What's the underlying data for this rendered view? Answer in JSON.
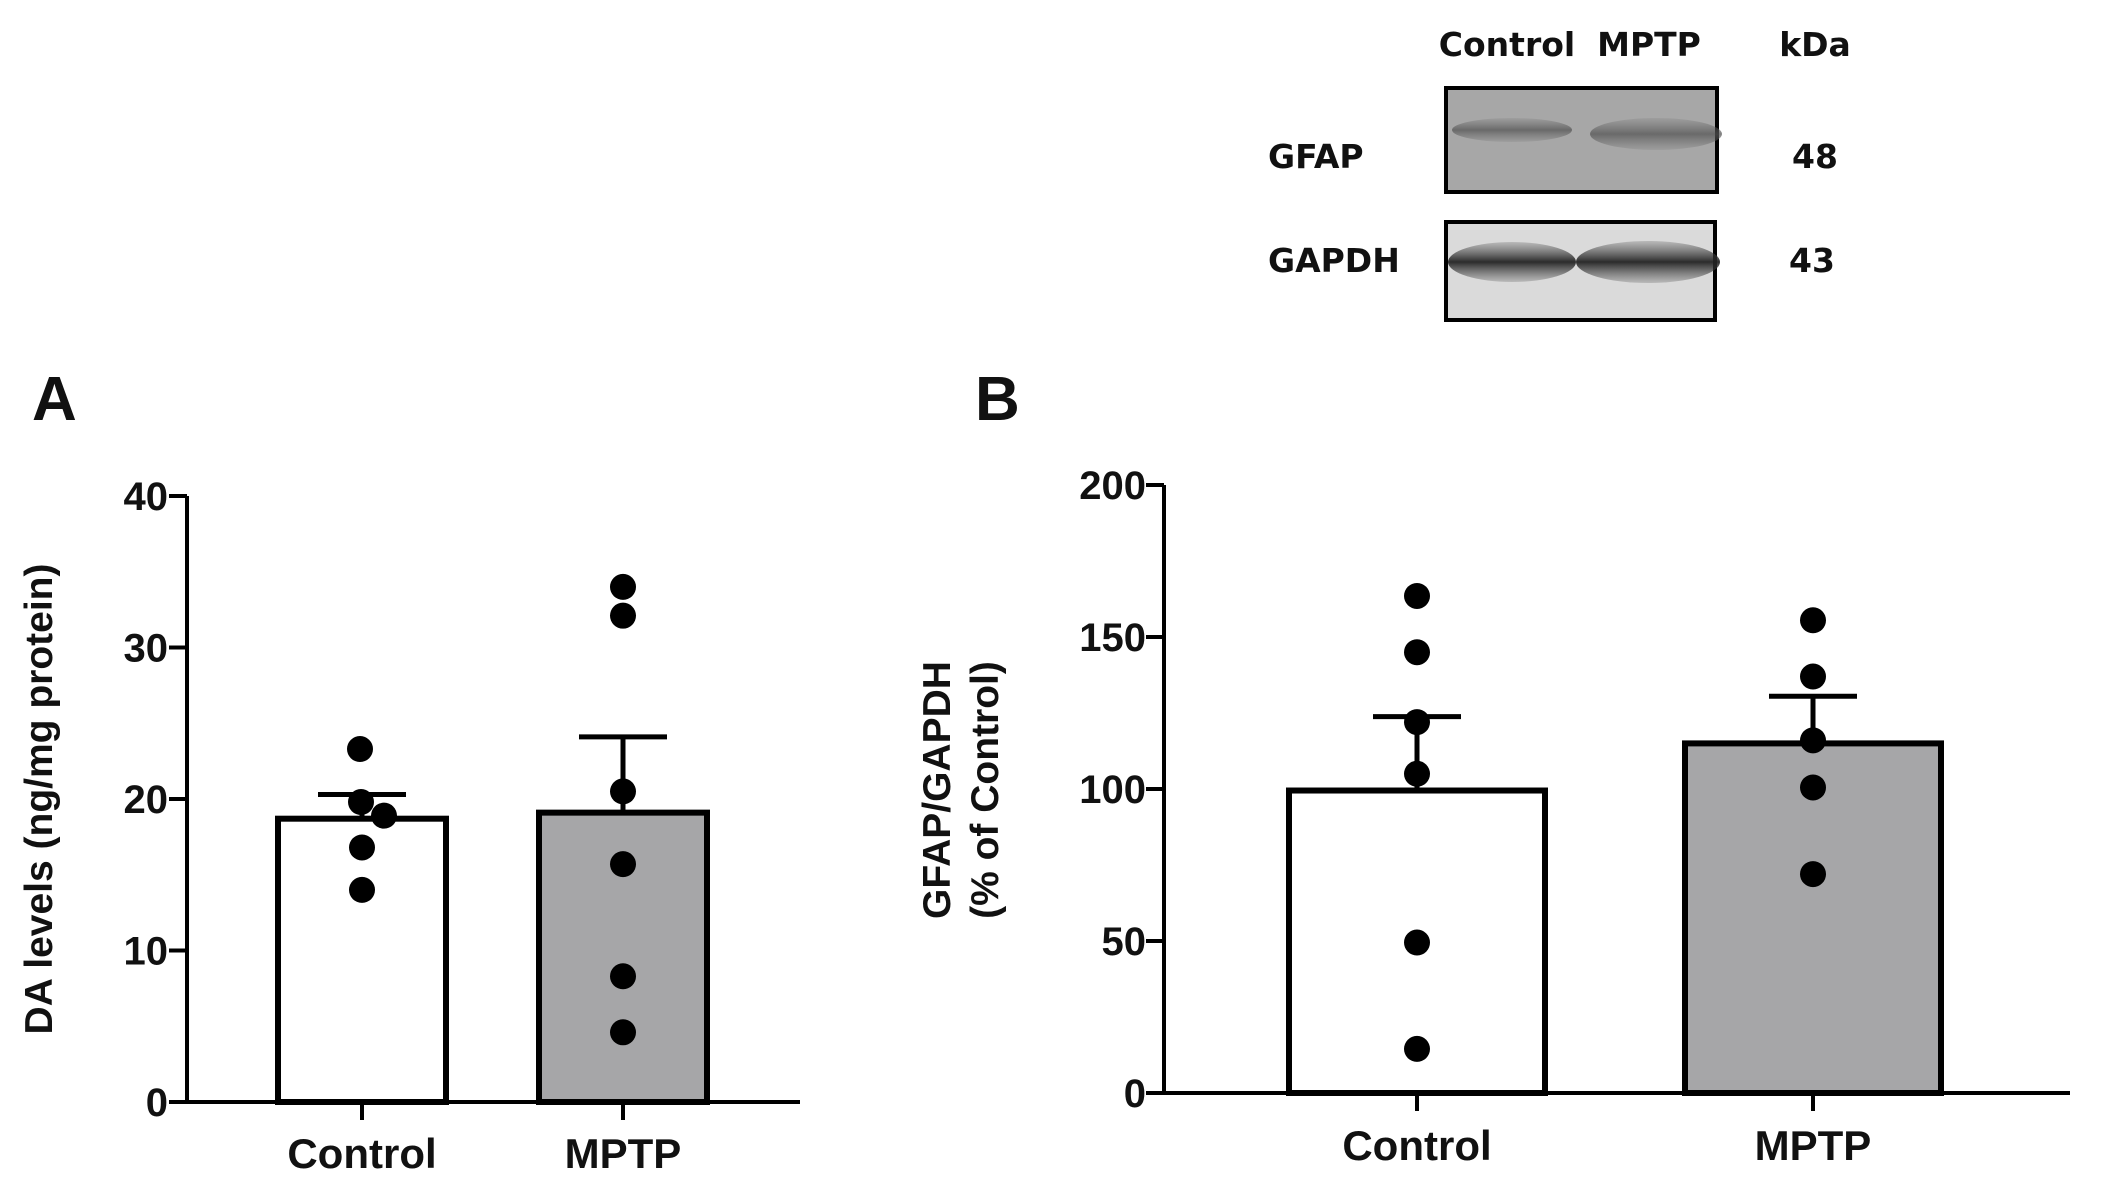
{
  "blot": {
    "lane_labels": [
      "Control",
      "MPTP"
    ],
    "unit_label": "kDa",
    "rows": [
      {
        "label": "GFAP",
        "kda": "48"
      },
      {
        "label": "GAPDH",
        "kda": "43"
      }
    ]
  },
  "chart_data": [
    {
      "panel": "A",
      "type": "bar",
      "categories": [
        "Control",
        "MPTP"
      ],
      "values": [
        18.7,
        19.1
      ],
      "errors": [
        1.6,
        5.0
      ],
      "bar_colors": [
        "#ffffff",
        "#a6a6a8"
      ],
      "points": [
        [
          23.3,
          19.8,
          18.9,
          16.8,
          14.0
        ],
        [
          34.0,
          32.1,
          20.5,
          15.7,
          8.3,
          4.6
        ]
      ],
      "xlabel": "",
      "ylabel": "DA levels (ng/mg protein)",
      "ylim": [
        0,
        40
      ],
      "yticks": [
        "0",
        "10",
        "20",
        "30",
        "40"
      ],
      "grid": false
    },
    {
      "panel": "B",
      "type": "bar",
      "categories": [
        "Control",
        "MPTP"
      ],
      "values": [
        99.5,
        115.0
      ],
      "errors": [
        24.3,
        15.5
      ],
      "bar_colors": [
        "#ffffff",
        "#a6a6a8"
      ],
      "points": [
        [
          163.5,
          145.0,
          122.0,
          105.0,
          49.5,
          14.5
        ],
        [
          155.5,
          137.0,
          116.0,
          100.5,
          72.0
        ]
      ],
      "xlabel": "",
      "ylabel": [
        "GFAP/GAPDH",
        "(% of Control)"
      ],
      "ylim": [
        0,
        200
      ],
      "yticks": [
        "0",
        "50",
        "100",
        "150",
        "200"
      ],
      "grid": false
    }
  ]
}
